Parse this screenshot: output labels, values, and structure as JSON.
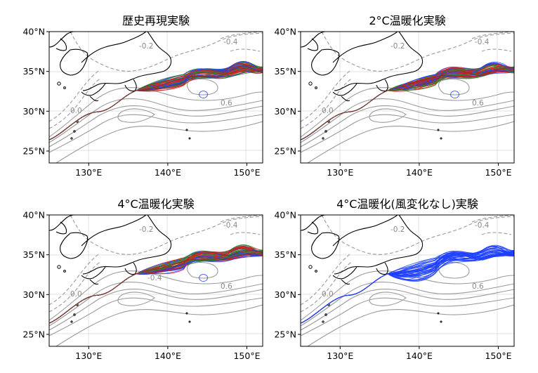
{
  "panels": [
    {
      "title": "歴史再現実験",
      "scenario": "historical",
      "colors": [
        "#1f3fff",
        "#e8201c",
        "#2e8b2e",
        "#8b2a2a"
      ]
    },
    {
      "title": "2°C温暖化実験",
      "scenario": "2c",
      "colors": [
        "#1f3fff",
        "#e8201c",
        "#2e8b2e",
        "#8b2a2a"
      ]
    },
    {
      "title": "4°C温暖化実験",
      "scenario": "4c",
      "colors": [
        "#1f3fff",
        "#e8201c",
        "#2e8b2e",
        "#8b2a2a"
      ]
    },
    {
      "title": "4°C温暖化(風変化なし)実験",
      "scenario": "4c-nowind",
      "colors": [
        "#1f3fff"
      ]
    }
  ],
  "axes": {
    "xticks": [
      "130°E",
      "140°E",
      "150°E"
    ],
    "yticks": [
      "40°N",
      "35°N",
      "30°N",
      "25°N"
    ],
    "lon_range": [
      125,
      152
    ],
    "lat_range": [
      23.5,
      40
    ],
    "xtick_values": [
      130,
      140,
      150
    ],
    "ytick_values": [
      40,
      35,
      30,
      25
    ]
  },
  "contour_labels": {
    "neg_02": "-0.2",
    "neg_04": "-0.4",
    "zero": "0.0",
    "pos_06": "0.6",
    "neg_04_small": "-0.4"
  },
  "colors": {
    "coast": "#000000",
    "ssh_contour": "#9a9a9a",
    "grid": "#d9d9d9"
  },
  "legend": "none",
  "grid": true
}
